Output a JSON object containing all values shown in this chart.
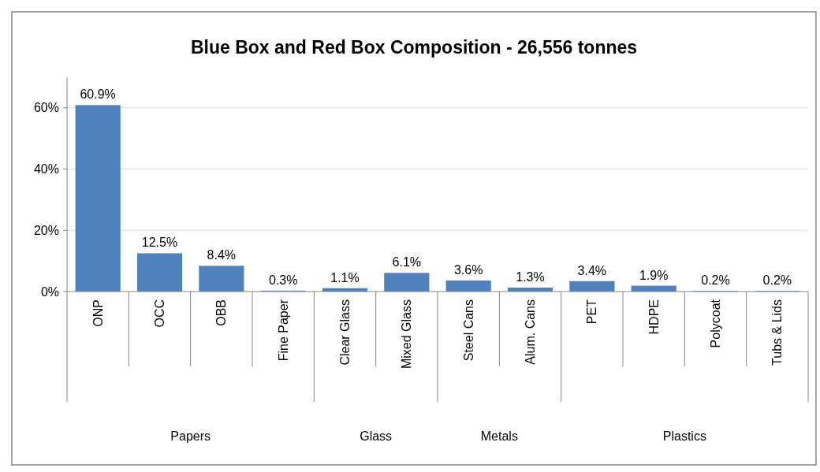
{
  "chart_data": {
    "type": "bar",
    "title": "Blue Box and Red Box Composition - 26,556 tonnes",
    "categories": [
      "ONP",
      "OCC",
      "OBB",
      "Fine Paper",
      "Clear Glass",
      "Mixed Glass",
      "Steel Cans",
      "Alum. Cans",
      "PET",
      "HDPE",
      "Polycoat",
      "Tubs & Lids"
    ],
    "values": [
      60.9,
      12.5,
      8.4,
      0.3,
      1.1,
      6.1,
      3.6,
      1.3,
      3.4,
      1.9,
      0.2,
      0.2
    ],
    "value_labels": [
      "60.9%",
      "12.5%",
      "8.4%",
      "0.3%",
      "1.1%",
      "6.1%",
      "3.6%",
      "1.3%",
      "3.4%",
      "1.9%",
      "0.2%",
      "0.2%"
    ],
    "color": "#4f81bd",
    "ylim": [
      0,
      70
    ],
    "yticks": [
      {
        "value": 0,
        "label": "0%"
      },
      {
        "value": 20,
        "label": "20%"
      },
      {
        "value": 40,
        "label": "40%"
      },
      {
        "value": 60,
        "label": "60%"
      }
    ],
    "grid": "y",
    "annotations": [
      "Papers",
      "Glass",
      "Metals",
      "Plastics"
    ]
  }
}
